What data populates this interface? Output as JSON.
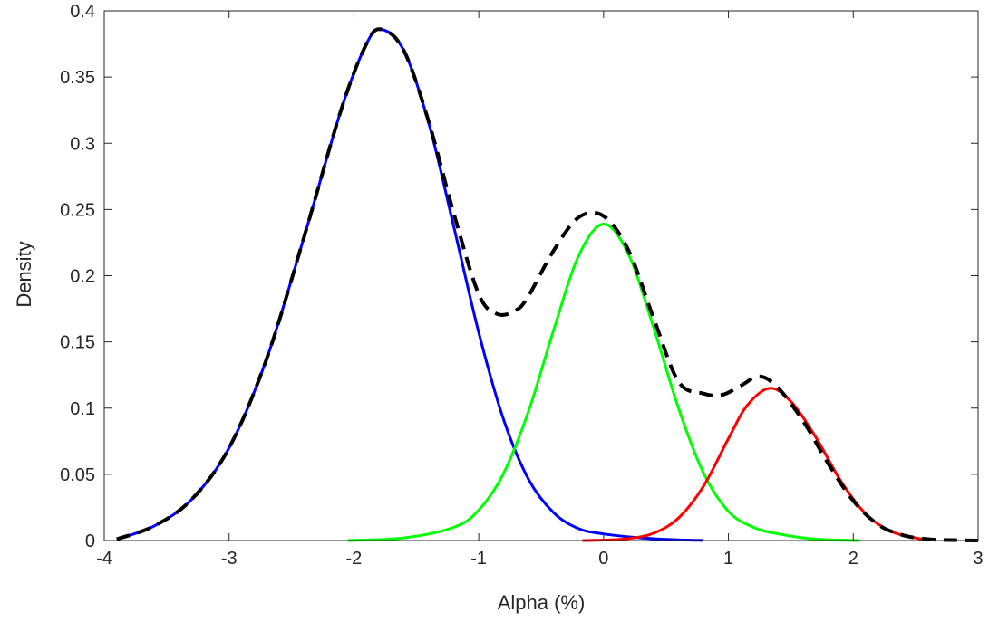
{
  "chart_data": {
    "type": "line",
    "title": "",
    "xlabel": "Alpha (%)",
    "ylabel": "Density",
    "xlim": [
      -4,
      3
    ],
    "ylim": [
      0,
      0.4
    ],
    "xticks": [
      "-4",
      "-3",
      "-2",
      "-1",
      "0",
      "1",
      "2",
      "3"
    ],
    "yticks": [
      "0",
      "0.05",
      "0.1",
      "0.15",
      "0.2",
      "0.25",
      "0.3",
      "0.35",
      "0.4"
    ],
    "grid": false,
    "legend": "none",
    "series": [
      {
        "color": "#0000ff",
        "style": "solid",
        "x": [
          -3.9,
          -3.6,
          -3.3,
          -3.0,
          -2.7,
          -2.4,
          -2.1,
          -1.9,
          -1.78,
          -1.6,
          -1.4,
          -1.2,
          -1.0,
          -0.8,
          -0.6,
          -0.4,
          -0.2,
          0.0,
          0.3,
          0.6,
          0.8
        ],
        "y": [
          0.001,
          0.011,
          0.031,
          0.07,
          0.137,
          0.229,
          0.326,
          0.375,
          0.386,
          0.37,
          0.315,
          0.237,
          0.157,
          0.091,
          0.046,
          0.021,
          0.009,
          0.005,
          0.002,
          0.0005,
          0.0001
        ]
      },
      {
        "color": "#00ff00",
        "style": "solid",
        "x": [
          -2.05,
          -1.6,
          -1.2,
          -1.0,
          -0.8,
          -0.6,
          -0.4,
          -0.2,
          0.0,
          0.2,
          0.4,
          0.6,
          0.8,
          1.0,
          1.2,
          1.4,
          1.7,
          2.05
        ],
        "y": [
          0.0,
          0.002,
          0.01,
          0.023,
          0.051,
          0.098,
          0.159,
          0.215,
          0.239,
          0.216,
          0.161,
          0.1,
          0.051,
          0.022,
          0.01,
          0.005,
          0.001,
          0.0
        ]
      },
      {
        "color": "#ff0000",
        "style": "solid",
        "x": [
          -0.17,
          0.0,
          0.2,
          0.4,
          0.6,
          0.8,
          1.0,
          1.15,
          1.33,
          1.5,
          1.7,
          1.9,
          2.1,
          2.3,
          2.5,
          2.6
        ],
        "y": [
          0.0,
          0.0003,
          0.0015,
          0.0055,
          0.017,
          0.041,
          0.077,
          0.102,
          0.115,
          0.105,
          0.078,
          0.045,
          0.02,
          0.007,
          0.002,
          0.0005
        ]
      },
      {
        "color": "#000000",
        "style": "dashed",
        "x": [
          -3.9,
          -3.6,
          -3.3,
          -3.0,
          -2.7,
          -2.4,
          -2.1,
          -1.9,
          -1.78,
          -1.6,
          -1.4,
          -1.2,
          -1.0,
          -0.85,
          -0.7,
          -0.6,
          -0.4,
          -0.2,
          0.0,
          0.2,
          0.4,
          0.6,
          0.8,
          0.95,
          1.1,
          1.25,
          1.4,
          1.6,
          1.8,
          2.0,
          2.2,
          2.4,
          2.6,
          2.8,
          3.0
        ],
        "y": [
          0.001,
          0.011,
          0.031,
          0.07,
          0.137,
          0.229,
          0.326,
          0.375,
          0.386,
          0.37,
          0.316,
          0.247,
          0.186,
          0.171,
          0.174,
          0.185,
          0.219,
          0.244,
          0.245,
          0.219,
          0.168,
          0.12,
          0.111,
          0.11,
          0.117,
          0.124,
          0.115,
          0.09,
          0.058,
          0.03,
          0.012,
          0.004,
          0.001,
          0.0003,
          0.0
        ]
      }
    ]
  }
}
